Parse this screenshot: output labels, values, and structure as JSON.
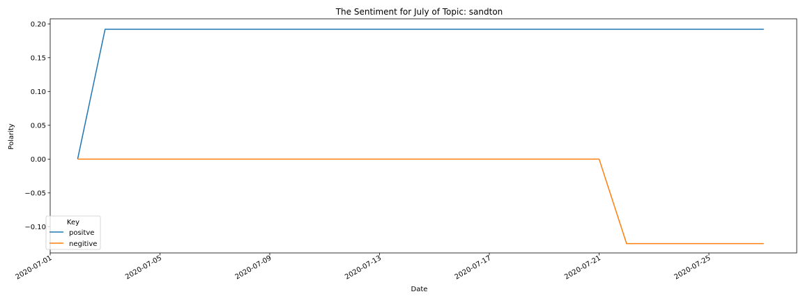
{
  "chart_data": {
    "type": "line",
    "title": "The Sentiment for July of Topic: sandton",
    "xlabel": "Date",
    "ylabel": "Polarity",
    "x": [
      "2020-07-02",
      "2020-07-03",
      "2020-07-04",
      "2020-07-05",
      "2020-07-06",
      "2020-07-07",
      "2020-07-08",
      "2020-07-09",
      "2020-07-10",
      "2020-07-11",
      "2020-07-12",
      "2020-07-13",
      "2020-07-14",
      "2020-07-15",
      "2020-07-16",
      "2020-07-17",
      "2020-07-18",
      "2020-07-19",
      "2020-07-20",
      "2020-07-21",
      "2020-07-22",
      "2020-07-23",
      "2020-07-24",
      "2020-07-25",
      "2020-07-26",
      "2020-07-27"
    ],
    "xlim": [
      "2020-07-01",
      "2020-07-28.2"
    ],
    "xticks": [
      "2020-07-01",
      "2020-07-05",
      "2020-07-09",
      "2020-07-13",
      "2020-07-17",
      "2020-07-21",
      "2020-07-25"
    ],
    "ylim": [
      -0.1388,
      0.2075
    ],
    "yticks": [
      0.2,
      0.15,
      0.1,
      0.05,
      0.0,
      -0.05,
      -0.1
    ],
    "ytick_labels": [
      "0.20",
      "0.15",
      "0.10",
      "0.05",
      "0.00",
      "−0.05",
      "−0.10"
    ],
    "series": [
      {
        "name": "positve",
        "color": "#1f77b4",
        "values": [
          0,
          0.192,
          0.192,
          0.192,
          0.192,
          0.192,
          0.192,
          0.192,
          0.192,
          0.192,
          0.192,
          0.192,
          0.192,
          0.192,
          0.192,
          0.192,
          0.192,
          0.192,
          0.192,
          0.192,
          0.192,
          0.192,
          0.192,
          0.192,
          0.192,
          0.192
        ]
      },
      {
        "name": "negitive",
        "color": "#ff7f0e",
        "values": [
          0,
          0,
          0,
          0,
          0,
          0,
          0,
          0,
          0,
          0,
          0,
          0,
          0,
          0,
          0,
          0,
          0,
          0,
          0,
          0,
          -0.125,
          -0.125,
          -0.125,
          -0.125,
          -0.125,
          -0.125
        ]
      }
    ],
    "legend": {
      "title": "Key",
      "position": "lower-left"
    },
    "grid": false
  }
}
